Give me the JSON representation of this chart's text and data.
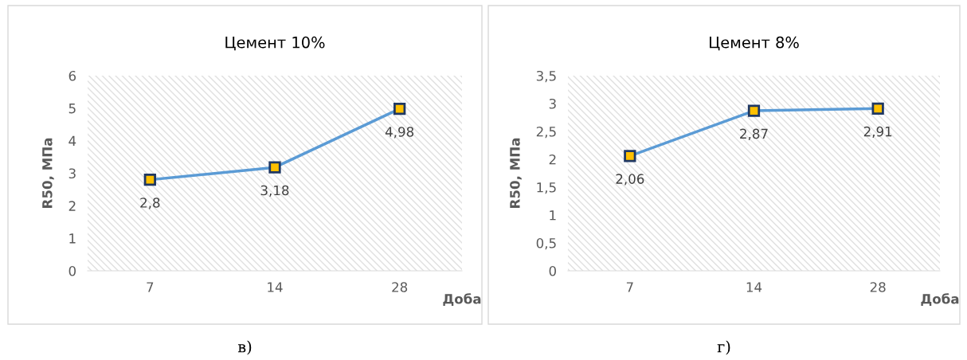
{
  "chart_data": [
    {
      "type": "line",
      "title": "Цемент 10%",
      "xlabel": "Доба",
      "ylabel": "R50, МПа",
      "categories": [
        "7",
        "14",
        "28"
      ],
      "series": [
        {
          "color": "#5b9bd5",
          "values": [
            2.8,
            3.18,
            4.98
          ],
          "value_labels": [
            "2,8",
            "3,18",
            "4,98"
          ]
        }
      ],
      "ylim": [
        0,
        6
      ],
      "yticks": [
        0,
        1,
        2,
        3,
        4,
        5,
        6
      ],
      "grid": false,
      "legend": false,
      "marker": "square",
      "line_style": "solid",
      "annotations": [
        "в)"
      ]
    },
    {
      "type": "line",
      "title": "Цемент 8%",
      "xlabel": "Доба",
      "ylabel": "R50, МПа",
      "categories": [
        "7",
        "14",
        "28"
      ],
      "series": [
        {
          "color": "#5b9bd5",
          "values": [
            2.06,
            2.87,
            2.91
          ],
          "value_labels": [
            "2,06",
            "2,87",
            "2,91"
          ]
        }
      ],
      "ylim": [
        0,
        3.5
      ],
      "yticks": [
        0,
        {
          "value": 0.5,
          "label": "0,5"
        },
        1,
        {
          "value": 1.5,
          "label": "1,5"
        },
        2,
        {
          "value": 2.5,
          "label": "2,5"
        },
        3,
        {
          "value": 3.5,
          "label": "3,5"
        }
      ],
      "grid": false,
      "legend": false,
      "marker": "square",
      "line_style": "solid",
      "annotations": [
        "г)"
      ]
    }
  ]
}
